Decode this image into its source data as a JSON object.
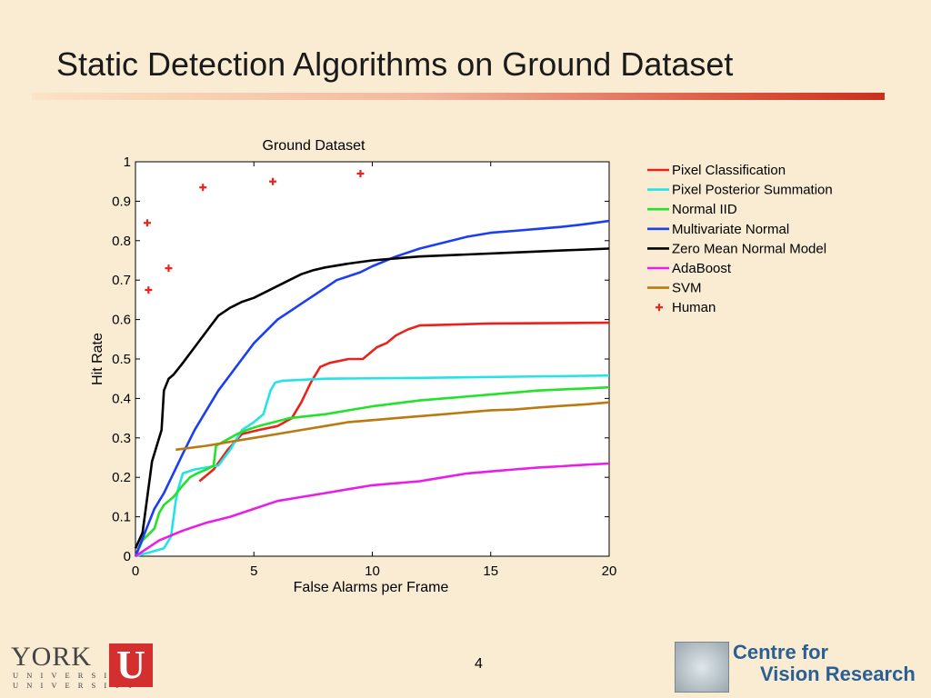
{
  "slide": {
    "title": "Static Detection Algorithms on Ground Dataset",
    "page_number": "4"
  },
  "logos": {
    "york": {
      "word": "YORK",
      "sub_line1": "U N I V E R S I T É",
      "sub_line2": "U N I V E R S I T Y",
      "mark": "U"
    },
    "cvr": {
      "line1": "Centre for",
      "line2": "Vision Research"
    }
  },
  "colors": {
    "background": "#f9ecd2",
    "title_rule": "#c9301d"
  },
  "chart_data": {
    "type": "line",
    "title": "Ground Dataset",
    "xlabel": "False Alarms per Frame",
    "ylabel": "Hit Rate",
    "xlim": [
      0,
      20
    ],
    "ylim": [
      0,
      1
    ],
    "xticks": [
      0,
      5,
      10,
      15,
      20
    ],
    "yticks": [
      0,
      0.1,
      0.2,
      0.3,
      0.4,
      0.5,
      0.6,
      0.7,
      0.8,
      0.9,
      1
    ],
    "grid": false,
    "legend_position": "outside-right",
    "series": [
      {
        "name": "Pixel Classification",
        "color": "#e8231b",
        "x": [
          2.7,
          3.3,
          3.9,
          4.5,
          5.2,
          6.0,
          6.6,
          7.0,
          7.4,
          7.8,
          8.2,
          9.0,
          9.6,
          10.0,
          10.2,
          10.6,
          11.0,
          11.5,
          12.0,
          15.0,
          20.0
        ],
        "y": [
          0.19,
          0.22,
          0.27,
          0.31,
          0.32,
          0.33,
          0.35,
          0.39,
          0.44,
          0.48,
          0.49,
          0.5,
          0.5,
          0.52,
          0.53,
          0.54,
          0.56,
          0.575,
          0.585,
          0.59,
          0.592
        ]
      },
      {
        "name": "Pixel Posterior Summation",
        "color": "#22e3e8",
        "x": [
          0,
          0.6,
          1.2,
          1.5,
          1.7,
          1.8,
          2.0,
          2.5,
          3.0,
          3.5,
          4.0,
          4.5,
          5.0,
          5.4,
          5.7,
          5.9,
          6.2,
          8.0,
          12.0,
          16.0,
          20.0
        ],
        "y": [
          0,
          0.01,
          0.02,
          0.05,
          0.14,
          0.17,
          0.21,
          0.22,
          0.225,
          0.23,
          0.27,
          0.32,
          0.34,
          0.36,
          0.42,
          0.44,
          0.445,
          0.45,
          0.452,
          0.455,
          0.458
        ]
      },
      {
        "name": "Normal IID",
        "color": "#22e22a",
        "x": [
          0,
          0.3,
          0.8,
          1.0,
          1.2,
          1.6,
          2.0,
          2.3,
          2.6,
          3.0,
          3.3,
          3.4,
          3.7,
          4.0,
          4.3,
          4.7,
          5.2,
          6.5,
          8.0,
          10.0,
          12.0,
          15.0,
          17.0,
          20.0
        ],
        "y": [
          0,
          0.04,
          0.07,
          0.11,
          0.13,
          0.15,
          0.18,
          0.2,
          0.21,
          0.22,
          0.23,
          0.28,
          0.29,
          0.3,
          0.31,
          0.32,
          0.33,
          0.35,
          0.36,
          0.38,
          0.395,
          0.41,
          0.42,
          0.428
        ]
      },
      {
        "name": "Multivariate Normal",
        "color": "#1b3ff0",
        "x": [
          0,
          0.4,
          0.8,
          1.2,
          1.6,
          2.0,
          2.5,
          3.0,
          3.5,
          4.0,
          4.5,
          5.0,
          5.5,
          6.0,
          6.5,
          7.0,
          7.5,
          8.0,
          8.5,
          9.0,
          9.5,
          10.0,
          11.0,
          12.0,
          13.0,
          14.0,
          15.0,
          16.0,
          17.0,
          18.0,
          19.0,
          20.0
        ],
        "y": [
          0,
          0.06,
          0.12,
          0.16,
          0.21,
          0.26,
          0.32,
          0.37,
          0.42,
          0.46,
          0.5,
          0.54,
          0.57,
          0.6,
          0.62,
          0.64,
          0.66,
          0.68,
          0.7,
          0.71,
          0.72,
          0.735,
          0.76,
          0.78,
          0.795,
          0.81,
          0.82,
          0.825,
          0.83,
          0.835,
          0.842,
          0.85
        ]
      },
      {
        "name": "Zero Mean Normal Model",
        "color": "#000000",
        "x": [
          0,
          0.3,
          0.5,
          0.7,
          0.9,
          1.1,
          1.2,
          1.4,
          1.6,
          2.0,
          2.5,
          3.0,
          3.5,
          4.0,
          4.5,
          5.0,
          5.5,
          6.0,
          6.5,
          7.0,
          7.5,
          8.0,
          9.0,
          10.0,
          11.0,
          12.0,
          14.0,
          16.0,
          18.0,
          20.0
        ],
        "y": [
          0.02,
          0.06,
          0.15,
          0.24,
          0.28,
          0.32,
          0.42,
          0.45,
          0.46,
          0.49,
          0.53,
          0.57,
          0.61,
          0.63,
          0.645,
          0.655,
          0.67,
          0.685,
          0.7,
          0.715,
          0.725,
          0.732,
          0.742,
          0.75,
          0.755,
          0.76,
          0.765,
          0.77,
          0.775,
          0.78
        ]
      },
      {
        "name": "AdaBoost",
        "color": "#e81ee8",
        "x": [
          0,
          0.5,
          1.0,
          2.0,
          3.0,
          4.0,
          5.0,
          6.0,
          7.0,
          8.0,
          9.0,
          10.0,
          11.0,
          12.0,
          13.0,
          14.0,
          15.0,
          16.0,
          17.0,
          18.0,
          19.0,
          20.0
        ],
        "y": [
          0,
          0.02,
          0.04,
          0.065,
          0.085,
          0.1,
          0.12,
          0.14,
          0.15,
          0.16,
          0.17,
          0.18,
          0.185,
          0.19,
          0.2,
          0.21,
          0.215,
          0.22,
          0.225,
          0.228,
          0.232,
          0.235
        ]
      },
      {
        "name": "SVM",
        "color": "#b97a10",
        "x": [
          1.7,
          3.0,
          4.0,
          5.0,
          6.0,
          7.0,
          8.0,
          9.0,
          10.0,
          11.0,
          12.0,
          13.0,
          14.0,
          15.0,
          16.0,
          17.0,
          18.0,
          19.0,
          20.0
        ],
        "y": [
          0.27,
          0.28,
          0.29,
          0.3,
          0.31,
          0.32,
          0.33,
          0.34,
          0.345,
          0.35,
          0.355,
          0.36,
          0.365,
          0.37,
          0.372,
          0.377,
          0.381,
          0.385,
          0.39
        ]
      },
      {
        "name": "Human",
        "color": "#e8231b",
        "marker": "+",
        "line": false,
        "x": [
          0.5,
          0.55,
          1.4,
          2.85,
          5.8,
          9.5
        ],
        "y": [
          0.845,
          0.675,
          0.73,
          0.935,
          0.95,
          0.97
        ]
      }
    ]
  }
}
